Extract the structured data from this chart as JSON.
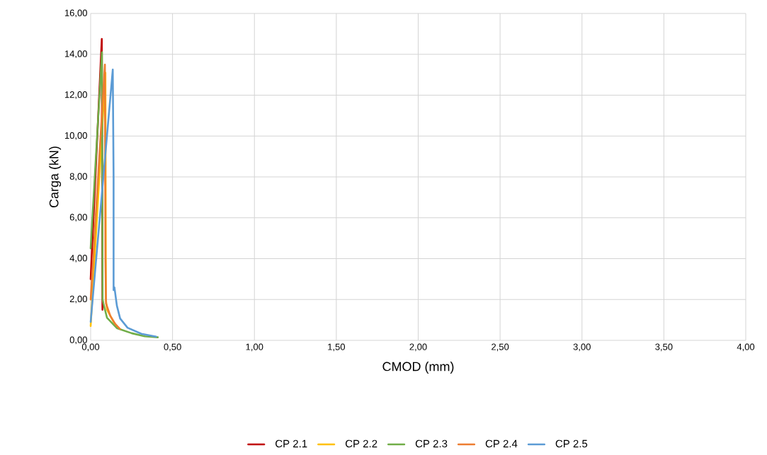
{
  "chart_data": {
    "type": "line",
    "xlabel": "CMOD (mm)",
    "ylabel": "Carga (kN)",
    "xlim": [
      0,
      4
    ],
    "ylim": [
      0,
      16
    ],
    "xticks": [
      {
        "value": 0,
        "label": "0,00"
      },
      {
        "value": 0.5,
        "label": "0,50"
      },
      {
        "value": 1,
        "label": "1,00"
      },
      {
        "value": 1.5,
        "label": "1,50"
      },
      {
        "value": 2,
        "label": "2,00"
      },
      {
        "value": 2.5,
        "label": "2,50"
      },
      {
        "value": 3,
        "label": "3,00"
      },
      {
        "value": 3.5,
        "label": "3,50"
      },
      {
        "value": 4,
        "label": "4,00"
      }
    ],
    "yticks": [
      {
        "value": 0,
        "label": "0,00"
      },
      {
        "value": 2,
        "label": "2,00"
      },
      {
        "value": 4,
        "label": "4,00"
      },
      {
        "value": 6,
        "label": "6,00"
      },
      {
        "value": 8,
        "label": "8,00"
      },
      {
        "value": 10,
        "label": "10,00"
      },
      {
        "value": 12,
        "label": "12,00"
      },
      {
        "value": 14,
        "label": "14,00"
      },
      {
        "value": 16,
        "label": "16,00"
      }
    ],
    "grid": true,
    "legend": "bottom",
    "marker": "none",
    "line_style": "solid",
    "series": [
      {
        "name": "CP 2.1",
        "color": "#c00000",
        "x": [
          0,
          0.068,
          0.07,
          0.072
        ],
        "values": [
          3.0,
          14.75,
          8.0,
          1.5
        ]
      },
      {
        "name": "CP 2.2",
        "color": "#ffc000",
        "x": [
          0,
          0.09,
          0.093,
          0.1,
          0.14,
          0.17
        ],
        "values": [
          0.7,
          13.1,
          2.0,
          1.5,
          0.9,
          0.6
        ]
      },
      {
        "name": "CP 2.3",
        "color": "#70ad47",
        "x": [
          0,
          0.069,
          0.073,
          0.078,
          0.1,
          0.16,
          0.25,
          0.33,
          0.41
        ],
        "values": [
          4.5,
          14.1,
          2.0,
          1.8,
          1.1,
          0.6,
          0.35,
          0.2,
          0.15
        ]
      },
      {
        "name": "CP 2.4",
        "color": "#ed7d31",
        "x": [
          0,
          0.087,
          0.09,
          0.094,
          0.12,
          0.15,
          0.18
        ],
        "values": [
          2.0,
          13.5,
          4.0,
          1.8,
          1.2,
          0.8,
          0.55
        ]
      },
      {
        "name": "CP 2.5",
        "color": "#5b9bd5",
        "x": [
          0,
          0.135,
          0.14,
          0.14,
          0.145,
          0.16,
          0.18,
          0.225,
          0.31,
          0.4
        ],
        "values": [
          0.9,
          13.25,
          8.0,
          2.46,
          2.6,
          1.7,
          1.07,
          0.62,
          0.32,
          0.18
        ]
      }
    ]
  }
}
